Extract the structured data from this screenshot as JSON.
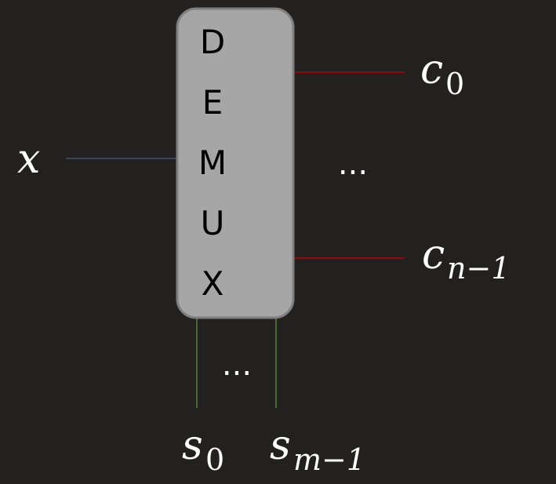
{
  "block": {
    "letters": [
      "D",
      "E",
      "M",
      "U",
      "X"
    ],
    "fill": "#a6a6a6",
    "stroke": "#7f7f7f"
  },
  "input": {
    "var": "x",
    "wire_color": "#44546a"
  },
  "outputs": {
    "first": {
      "var": "c",
      "sub": "0"
    },
    "last": {
      "var": "c",
      "sub": "n−1"
    },
    "ellipsis": "...",
    "wire_color": "#c00000"
  },
  "selects": {
    "first": {
      "var": "s",
      "sub": "0"
    },
    "last": {
      "var": "s",
      "sub": "m−1"
    },
    "ellipsis": "...",
    "wire_color": "#548235"
  }
}
